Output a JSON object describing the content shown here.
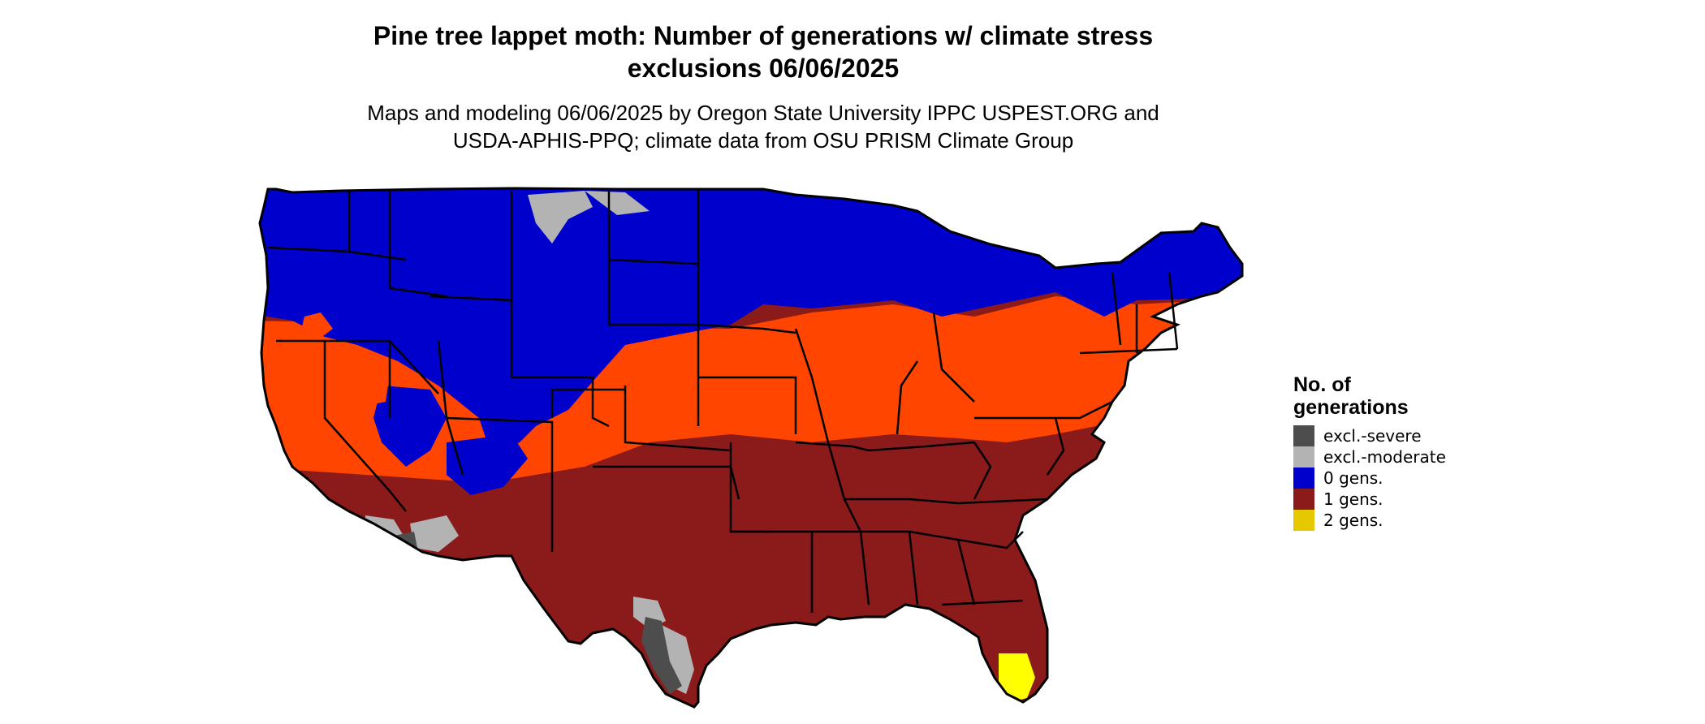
{
  "title": {
    "line1": "Pine tree lappet moth: Number of generations w/ climate stress",
    "line2": "exclusions 06/06/2025"
  },
  "subtitle": {
    "line1": "Maps and modeling 06/06/2025 by Oregon State University IPPC USPEST.ORG and",
    "line2": "USDA-APHIS-PPQ; climate data from OSU PRISM Climate Group"
  },
  "legend": {
    "title_line1": "No. of",
    "title_line2": "generations",
    "items": [
      {
        "label": "excl.-severe",
        "color": "#4d4d4d"
      },
      {
        "label": "excl.-moderate",
        "color": "#b3b3b3"
      },
      {
        "label": "0 gens.",
        "color": "#0000cd"
      },
      {
        "label": "1 gens.",
        "color": "#8b1a1a"
      },
      {
        "label": "2 gens.",
        "color": "#e6c800"
      }
    ]
  },
  "map_colors": {
    "cool_zone": "#0000cd",
    "transition_zone": "#ff4500",
    "warm_zone": "#8b1a1a",
    "moderate_exclusion": "#b3b3b3",
    "severe_exclusion": "#4d4d4d",
    "two_generations": "#ffff00",
    "state_borders": "#000000"
  }
}
